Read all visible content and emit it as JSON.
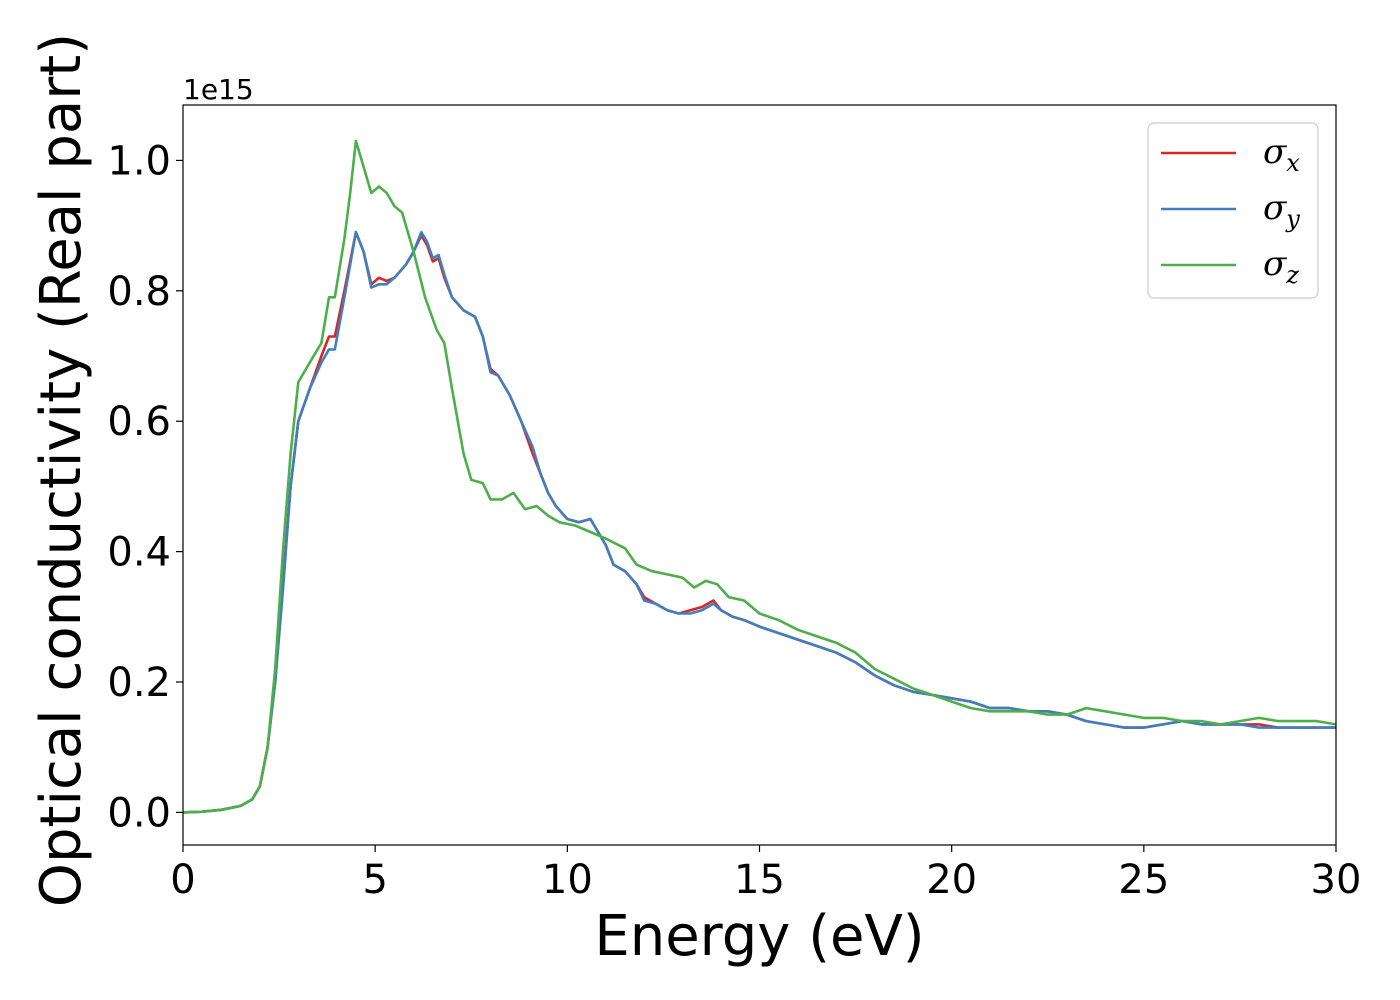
{
  "chart_data": {
    "type": "line",
    "xlabel": "Energy (eV)",
    "ylabel": "Optical conductivity (Real part)",
    "y_offset_text": "1e15",
    "xlim": [
      0,
      30
    ],
    "ylim": [
      -0.05,
      1.085
    ],
    "xticks": [
      0,
      5,
      10,
      15,
      20,
      25,
      30
    ],
    "xtick_labels": [
      "0",
      "5",
      "10",
      "15",
      "20",
      "25",
      "30"
    ],
    "yticks": [
      0.0,
      0.2,
      0.4,
      0.6,
      0.8,
      1.0
    ],
    "ytick_labels": [
      "0.0",
      "0.2",
      "0.4",
      "0.6",
      "0.8",
      "1.0"
    ],
    "grid": false,
    "legend_position": "top-right",
    "series": [
      {
        "name": "σx",
        "legend_base": "σ",
        "legend_sub": "x",
        "color": "#d62728",
        "x": [
          0,
          0.5,
          1,
          1.5,
          1.8,
          2.0,
          2.2,
          2.4,
          2.6,
          2.8,
          3.0,
          3.3,
          3.6,
          3.8,
          3.95,
          4.2,
          4.5,
          4.7,
          4.9,
          5.1,
          5.3,
          5.5,
          5.8,
          6.0,
          6.2,
          6.35,
          6.5,
          6.65,
          6.8,
          7.0,
          7.3,
          7.6,
          7.8,
          8.0,
          8.2,
          8.5,
          8.8,
          9.1,
          9.3,
          9.5,
          9.7,
          10.0,
          10.3,
          10.6,
          10.8,
          11.0,
          11.2,
          11.5,
          11.8,
          12.0,
          12.3,
          12.6,
          12.9,
          13.2,
          13.5,
          13.8,
          14.0,
          14.3,
          14.6,
          15.0,
          15.5,
          16.0,
          16.5,
          17.0,
          17.5,
          18.0,
          18.5,
          19.0,
          19.5,
          20.0,
          20.5,
          21.0,
          21.5,
          22.0,
          22.5,
          23.0,
          23.5,
          24.0,
          24.5,
          25.0,
          25.5,
          26.0,
          26.5,
          27.0,
          27.5,
          28.0,
          28.5,
          29.0,
          29.5,
          30.0
        ],
        "y": [
          0.0,
          0.001,
          0.004,
          0.01,
          0.02,
          0.04,
          0.1,
          0.2,
          0.35,
          0.5,
          0.6,
          0.65,
          0.7,
          0.73,
          0.73,
          0.8,
          0.89,
          0.86,
          0.81,
          0.82,
          0.815,
          0.82,
          0.84,
          0.86,
          0.885,
          0.87,
          0.845,
          0.85,
          0.82,
          0.79,
          0.77,
          0.76,
          0.73,
          0.68,
          0.67,
          0.64,
          0.6,
          0.55,
          0.52,
          0.49,
          0.47,
          0.45,
          0.445,
          0.45,
          0.43,
          0.41,
          0.38,
          0.37,
          0.35,
          0.33,
          0.32,
          0.31,
          0.305,
          0.31,
          0.315,
          0.325,
          0.31,
          0.3,
          0.295,
          0.285,
          0.275,
          0.265,
          0.255,
          0.245,
          0.23,
          0.21,
          0.195,
          0.185,
          0.18,
          0.175,
          0.17,
          0.16,
          0.16,
          0.155,
          0.155,
          0.15,
          0.14,
          0.135,
          0.13,
          0.13,
          0.135,
          0.14,
          0.135,
          0.135,
          0.135,
          0.135,
          0.13,
          0.13,
          0.13,
          0.13
        ]
      },
      {
        "name": "σy",
        "legend_base": "σ",
        "legend_sub": "y",
        "color": "#3f7fbf",
        "x": [
          0,
          0.5,
          1,
          1.5,
          1.8,
          2.0,
          2.2,
          2.4,
          2.6,
          2.8,
          3.0,
          3.3,
          3.6,
          3.8,
          3.95,
          4.2,
          4.5,
          4.7,
          4.9,
          5.1,
          5.3,
          5.5,
          5.8,
          6.0,
          6.2,
          6.35,
          6.5,
          6.65,
          6.8,
          7.0,
          7.3,
          7.6,
          7.8,
          8.0,
          8.2,
          8.5,
          8.8,
          9.1,
          9.3,
          9.5,
          9.7,
          10.0,
          10.3,
          10.6,
          10.8,
          11.0,
          11.2,
          11.5,
          11.8,
          12.0,
          12.3,
          12.6,
          12.9,
          13.2,
          13.5,
          13.8,
          14.0,
          14.3,
          14.6,
          15.0,
          15.5,
          16.0,
          16.5,
          17.0,
          17.5,
          18.0,
          18.5,
          19.0,
          19.5,
          20.0,
          20.5,
          21.0,
          21.5,
          22.0,
          22.5,
          23.0,
          23.5,
          24.0,
          24.5,
          25.0,
          25.5,
          26.0,
          26.5,
          27.0,
          27.5,
          28.0,
          28.5,
          29.0,
          29.5,
          30.0
        ],
        "y": [
          0.0,
          0.001,
          0.004,
          0.01,
          0.02,
          0.04,
          0.1,
          0.2,
          0.34,
          0.5,
          0.6,
          0.65,
          0.69,
          0.71,
          0.71,
          0.79,
          0.89,
          0.86,
          0.805,
          0.81,
          0.81,
          0.82,
          0.84,
          0.86,
          0.89,
          0.875,
          0.85,
          0.855,
          0.825,
          0.79,
          0.77,
          0.76,
          0.73,
          0.675,
          0.67,
          0.64,
          0.6,
          0.56,
          0.52,
          0.49,
          0.47,
          0.45,
          0.445,
          0.45,
          0.43,
          0.41,
          0.38,
          0.37,
          0.35,
          0.325,
          0.32,
          0.31,
          0.305,
          0.305,
          0.31,
          0.32,
          0.31,
          0.3,
          0.295,
          0.285,
          0.275,
          0.265,
          0.255,
          0.245,
          0.23,
          0.21,
          0.195,
          0.185,
          0.18,
          0.175,
          0.17,
          0.16,
          0.16,
          0.155,
          0.155,
          0.15,
          0.14,
          0.135,
          0.13,
          0.13,
          0.135,
          0.14,
          0.135,
          0.135,
          0.135,
          0.13,
          0.13,
          0.13,
          0.13,
          0.13
        ]
      },
      {
        "name": "σz",
        "legend_base": "σ",
        "legend_sub": "z",
        "color": "#4daf4a",
        "x": [
          0,
          0.5,
          1,
          1.5,
          1.8,
          2.0,
          2.2,
          2.4,
          2.6,
          2.8,
          3.0,
          3.3,
          3.6,
          3.8,
          3.95,
          4.2,
          4.35,
          4.5,
          4.7,
          4.9,
          5.1,
          5.3,
          5.5,
          5.7,
          6.0,
          6.3,
          6.6,
          6.8,
          7.0,
          7.3,
          7.5,
          7.8,
          8.0,
          8.3,
          8.6,
          8.9,
          9.2,
          9.5,
          9.8,
          10.2,
          10.6,
          11.0,
          11.5,
          11.8,
          12.2,
          12.6,
          13.0,
          13.3,
          13.6,
          13.9,
          14.2,
          14.6,
          15.0,
          15.5,
          16.0,
          16.5,
          17.0,
          17.5,
          18.0,
          18.5,
          19.0,
          19.5,
          20.0,
          20.5,
          21.0,
          21.5,
          22.0,
          22.5,
          23.0,
          23.5,
          24.0,
          24.5,
          25.0,
          25.5,
          26.0,
          26.5,
          27.0,
          27.5,
          28.0,
          28.5,
          29.0,
          29.5,
          30.0
        ],
        "y": [
          0.0,
          0.001,
          0.004,
          0.01,
          0.02,
          0.04,
          0.1,
          0.22,
          0.4,
          0.55,
          0.66,
          0.69,
          0.72,
          0.79,
          0.79,
          0.88,
          0.95,
          1.03,
          0.99,
          0.95,
          0.96,
          0.95,
          0.93,
          0.92,
          0.86,
          0.79,
          0.74,
          0.72,
          0.65,
          0.55,
          0.51,
          0.505,
          0.48,
          0.48,
          0.49,
          0.465,
          0.47,
          0.455,
          0.445,
          0.44,
          0.43,
          0.42,
          0.405,
          0.38,
          0.37,
          0.365,
          0.36,
          0.345,
          0.355,
          0.35,
          0.33,
          0.325,
          0.305,
          0.295,
          0.28,
          0.27,
          0.26,
          0.245,
          0.22,
          0.205,
          0.19,
          0.18,
          0.17,
          0.16,
          0.155,
          0.155,
          0.155,
          0.15,
          0.15,
          0.16,
          0.155,
          0.15,
          0.145,
          0.145,
          0.14,
          0.14,
          0.135,
          0.14,
          0.145,
          0.14,
          0.14,
          0.14,
          0.135
        ]
      }
    ]
  }
}
